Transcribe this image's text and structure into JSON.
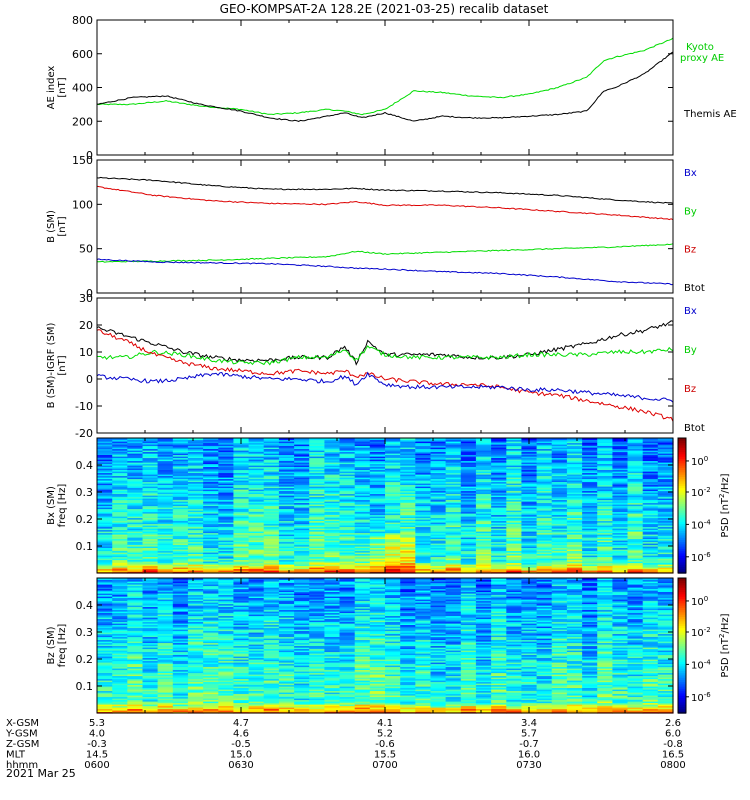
{
  "title": "GEO-KOMPSAT-2A 128.2E (2021-03-25) recalib dataset",
  "colors": {
    "black": "#000000",
    "green": "#00dd00",
    "red": "#dd0000",
    "blue": "#0000cc",
    "kyoto": "#00cc00"
  },
  "chart_data": [
    {
      "id": "ae",
      "type": "line",
      "ylabel": "AE index\n[nT]",
      "ylim": [
        0,
        800
      ],
      "yticks": [
        0,
        200,
        400,
        600,
        800
      ],
      "legend": [
        {
          "label": "Kyoto\nproxy AE",
          "color": "#00cc00"
        },
        {
          "label": "Themis AE",
          "color": "#000000"
        }
      ],
      "x": [
        0,
        0.06,
        0.12,
        0.18,
        0.25,
        0.3,
        0.35,
        0.4,
        0.43,
        0.46,
        0.5,
        0.55,
        0.6,
        0.65,
        0.7,
        0.75,
        0.8,
        0.85,
        0.88,
        0.9,
        0.95,
        1.0
      ],
      "series": [
        {
          "name": "Kyoto proxy AE",
          "color": "#00dd00",
          "values": [
            300,
            300,
            320,
            290,
            270,
            240,
            250,
            270,
            260,
            240,
            270,
            380,
            370,
            350,
            340,
            360,
            400,
            460,
            560,
            580,
            620,
            690
          ]
        },
        {
          "name": "Themis AE",
          "color": "#000000",
          "values": [
            300,
            340,
            350,
            300,
            260,
            220,
            200,
            230,
            250,
            220,
            250,
            200,
            230,
            220,
            220,
            230,
            240,
            260,
            380,
            400,
            480,
            610
          ]
        }
      ]
    },
    {
      "id": "bsm",
      "type": "line",
      "ylabel": "B (SM)\n[nT]",
      "ylim": [
        0,
        150
      ],
      "yticks": [
        0,
        50,
        100,
        150
      ],
      "legend": [
        {
          "label": "Bx",
          "color": "#0000cc"
        },
        {
          "label": "By",
          "color": "#00cc00"
        },
        {
          "label": "Bz",
          "color": "#cc0000"
        },
        {
          "label": "Btot",
          "color": "#000000"
        }
      ],
      "x": [
        0,
        0.1,
        0.2,
        0.3,
        0.4,
        0.45,
        0.5,
        0.6,
        0.7,
        0.8,
        0.9,
        1.0
      ],
      "series": [
        {
          "name": "Btot",
          "color": "#000000",
          "values": [
            130,
            127,
            121,
            117,
            117,
            118,
            116,
            115,
            113,
            110,
            105,
            101
          ]
        },
        {
          "name": "Bz",
          "color": "#dd0000",
          "values": [
            120,
            110,
            104,
            101,
            100,
            103,
            99,
            99,
            96,
            92,
            88,
            83
          ]
        },
        {
          "name": "By",
          "color": "#00dd00",
          "values": [
            35,
            36,
            37,
            39,
            41,
            47,
            44,
            46,
            48,
            50,
            52,
            55
          ]
        },
        {
          "name": "Bx",
          "color": "#0000cc",
          "values": [
            38,
            35,
            34,
            33,
            30,
            28,
            27,
            24,
            22,
            18,
            13,
            10
          ]
        }
      ]
    },
    {
      "id": "bresid",
      "type": "line",
      "ylabel": "B (SM)-IGRF (SM)\n[nT]",
      "ylim": [
        -20,
        30
      ],
      "yticks": [
        -20,
        -10,
        0,
        10,
        20,
        30
      ],
      "legend": [
        {
          "label": "Bx",
          "color": "#0000cc"
        },
        {
          "label": "By",
          "color": "#00cc00"
        },
        {
          "label": "Bz",
          "color": "#cc0000"
        },
        {
          "label": "Btot",
          "color": "#000000"
        }
      ],
      "x": [
        0,
        0.05,
        0.1,
        0.15,
        0.2,
        0.25,
        0.3,
        0.35,
        0.4,
        0.43,
        0.45,
        0.47,
        0.5,
        0.55,
        0.6,
        0.65,
        0.7,
        0.75,
        0.8,
        0.85,
        0.9,
        0.95,
        1.0
      ],
      "series": [
        {
          "name": "Btot",
          "color": "#000000",
          "values": [
            19,
            16,
            13,
            10,
            8,
            7,
            7,
            8,
            8,
            12,
            6,
            14,
            9,
            9,
            9,
            8,
            8,
            9,
            11,
            13,
            16,
            18,
            21
          ]
        },
        {
          "name": "By",
          "color": "#00dd00",
          "values": [
            8,
            8,
            10,
            9,
            7,
            6,
            6,
            8,
            8,
            11,
            7,
            12,
            9,
            8,
            8,
            8,
            8,
            9,
            9,
            9,
            10,
            10,
            11
          ]
        },
        {
          "name": "Bz",
          "color": "#dd0000",
          "values": [
            18,
            14,
            9,
            6,
            4,
            3,
            2,
            3,
            2,
            3,
            1,
            2,
            0,
            -1,
            -2,
            -2,
            -3,
            -5,
            -6,
            -8,
            -10,
            -12,
            -15
          ]
        },
        {
          "name": "Bx",
          "color": "#0000cc",
          "values": [
            1,
            0,
            -1,
            0,
            2,
            1,
            0,
            0,
            -1,
            1,
            -2,
            2,
            -2,
            -3,
            -3,
            -3,
            -3,
            -4,
            -4,
            -5,
            -6,
            -7,
            -8
          ]
        }
      ]
    },
    {
      "id": "bxspec",
      "type": "heatmap",
      "ylabel": "Bx (SM)\nfreq [Hz]",
      "ylim": [
        0,
        0.5
      ],
      "yticks": [
        "0.1",
        "0.2",
        "0.3",
        "0.4"
      ],
      "colorbar": {
        "label": "PSD [nT^2/Hz]",
        "ticks": [
          "10^0",
          "10^-2",
          "10^-4",
          "10^-6"
        ]
      }
    },
    {
      "id": "bzspec",
      "type": "heatmap",
      "ylabel": "Bz (SM)\nfreq [Hz]",
      "ylim": [
        0,
        0.5
      ],
      "yticks": [
        "0.1",
        "0.2",
        "0.3",
        "0.4"
      ],
      "colorbar": {
        "label": "PSD [nT^2/Hz]",
        "ticks": [
          "10^0",
          "10^-2",
          "10^-4",
          "10^-6"
        ]
      }
    }
  ],
  "ephemeris": {
    "labels": [
      "X-GSM",
      "Y-GSM",
      "Z-GSM",
      "MLT",
      "hhmm"
    ],
    "columns": [
      [
        "5.3",
        "4.0",
        "-0.3",
        "14.5",
        "0600"
      ],
      [
        "4.7",
        "4.6",
        "-0.5",
        "15.0",
        "0630"
      ],
      [
        "4.1",
        "5.2",
        "-0.6",
        "15.5",
        "0700"
      ],
      [
        "3.4",
        "5.7",
        "-0.7",
        "16.0",
        "0730"
      ],
      [
        "2.6",
        "6.0",
        "-0.8",
        "16.5",
        "0800"
      ]
    ],
    "date": "2021 Mar 25"
  }
}
